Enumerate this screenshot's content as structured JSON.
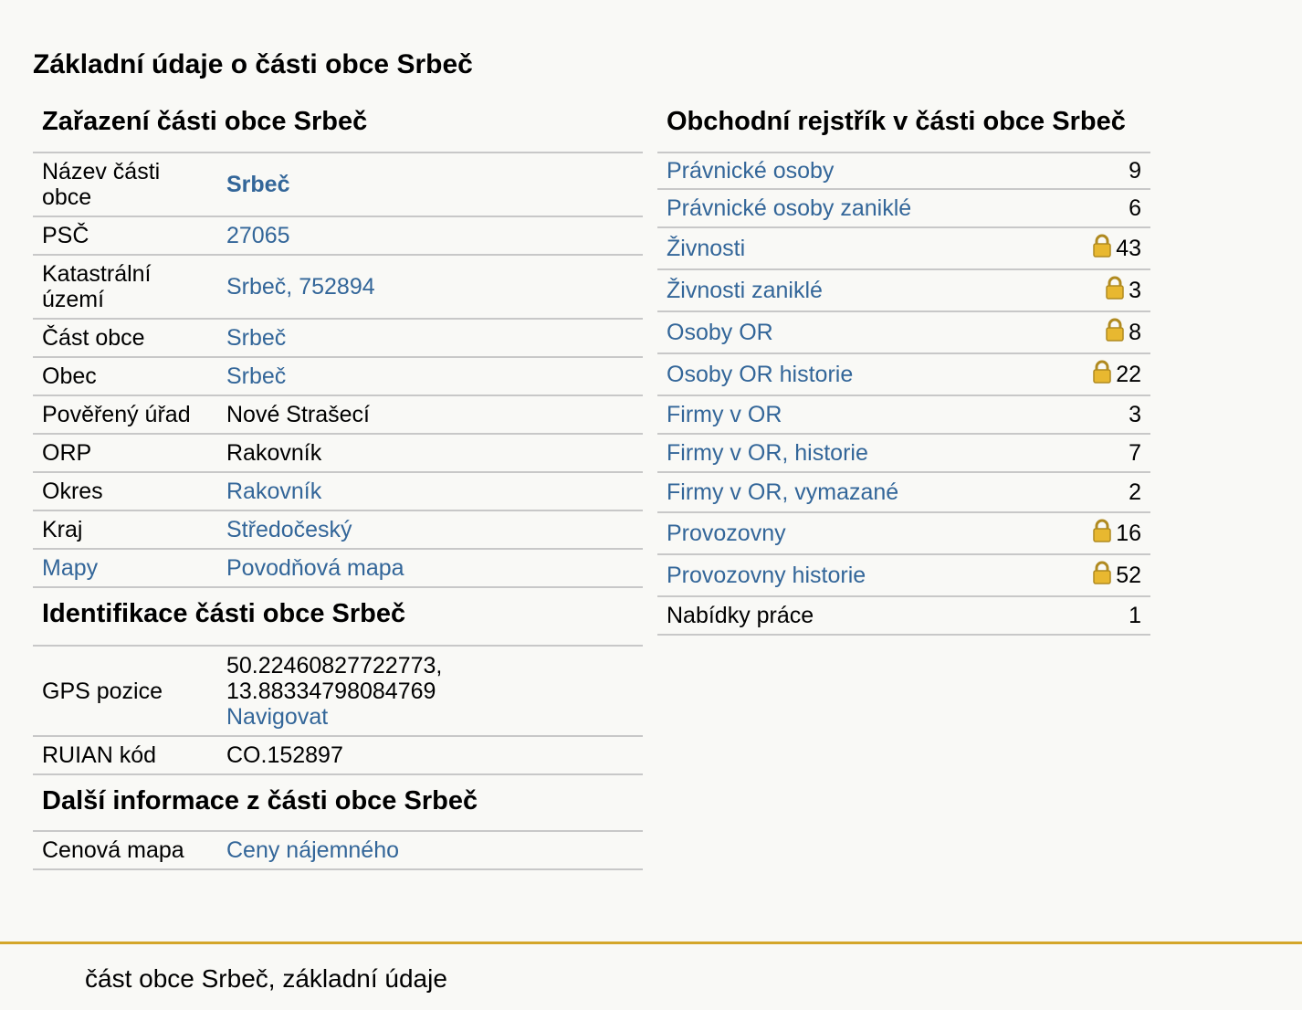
{
  "page_title": "Základní údaje o části obce Srbeč",
  "zarazeni": {
    "title": "Zařazení části obce Srbeč",
    "rows": [
      {
        "label": "Název části obce",
        "value": "Srbeč"
      },
      {
        "label": "PSČ",
        "value": "27065"
      },
      {
        "label": "Katastrální území",
        "value": "Srbeč, 752894"
      },
      {
        "label": "Část obce",
        "value": "Srbeč"
      },
      {
        "label": "Obec",
        "value": "Srbeč"
      },
      {
        "label": "Pověřený úřad",
        "value": "Nové Strašecí"
      },
      {
        "label": "ORP",
        "value": "Rakovník"
      },
      {
        "label": "Okres",
        "value": "Rakovník"
      },
      {
        "label": "Kraj",
        "value": "Středočeský"
      },
      {
        "label": "Mapy",
        "value": "Povodňová mapa"
      }
    ]
  },
  "identifikace": {
    "title": "Identifikace části obce Srbeč",
    "gps_label": "GPS pozice",
    "gps_lat": "50.22460827722773,",
    "gps_lon": "13.88334798084769",
    "gps_nav": "Navigovat",
    "ruian_label": "RUIAN kód",
    "ruian_value": "CO.152897"
  },
  "dalsi": {
    "title": "Další informace z části obce Srbeč",
    "label": "Cenová mapa",
    "value": "Ceny nájemného"
  },
  "rejstrik": {
    "title": "Obchodní rejstřík v části obce Srbeč",
    "rows": [
      {
        "label": "Právnické osoby",
        "count": "9"
      },
      {
        "label": "Právnické osoby zaniklé",
        "count": "6"
      },
      {
        "label": "Živnosti",
        "count": "43"
      },
      {
        "label": "Živnosti zaniklé",
        "count": "3"
      },
      {
        "label": "Osoby OR",
        "count": "8"
      },
      {
        "label": "Osoby OR historie",
        "count": "22"
      },
      {
        "label": "Firmy v OR",
        "count": "3"
      },
      {
        "label": "Firmy v OR, historie",
        "count": "7"
      },
      {
        "label": "Firmy v OR, vymazané",
        "count": "2"
      },
      {
        "label": "Provozovny",
        "count": "16"
      },
      {
        "label": "Provozovny historie",
        "count": "52"
      },
      {
        "label": "Nabídky práce",
        "count": "1"
      }
    ]
  },
  "footer": {
    "text": "část obce Srbeč, základní údaje"
  },
  "colors": {
    "link": "#336699",
    "footer_rule": "#d4a62a",
    "row_border": "#c8c8c8",
    "background": "#f9f9f6"
  },
  "icons": {
    "locked_rows": "lock-icon"
  }
}
